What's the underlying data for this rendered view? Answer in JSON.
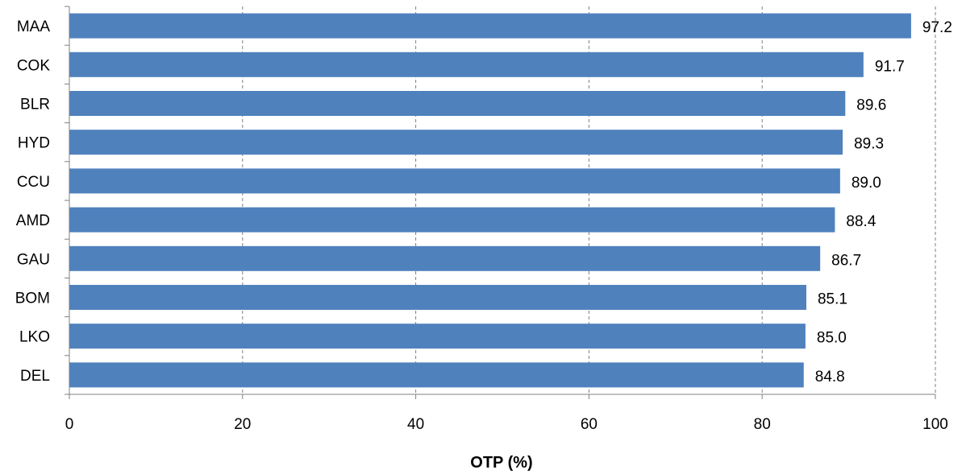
{
  "chart_data": {
    "type": "bar",
    "orientation": "horizontal",
    "categories": [
      "MAA",
      "COK",
      "BLR",
      "HYD",
      "CCU",
      "AMD",
      "GAU",
      "BOM",
      "LKO",
      "DEL"
    ],
    "values": [
      97.2,
      91.7,
      89.6,
      89.3,
      89.0,
      88.4,
      86.7,
      85.1,
      85.0,
      84.8
    ],
    "data_labels": [
      "97.2",
      "91.7",
      "89.6",
      "89.3",
      "89.0",
      "88.4",
      "86.7",
      "85.1",
      "85.0",
      "84.8"
    ],
    "xlim": [
      0,
      100
    ],
    "xticks": [
      0,
      20,
      40,
      60,
      80,
      100
    ],
    "xtick_labels": [
      "0",
      "20",
      "40",
      "60",
      "80",
      "100"
    ],
    "xlabel": "OTP (%)",
    "ylabel": "",
    "title": "",
    "grid": "vertical dashed",
    "legend": "none",
    "bar_color": "#4F81BD",
    "grid_color": "#808080",
    "axis_color": "#808080"
  }
}
